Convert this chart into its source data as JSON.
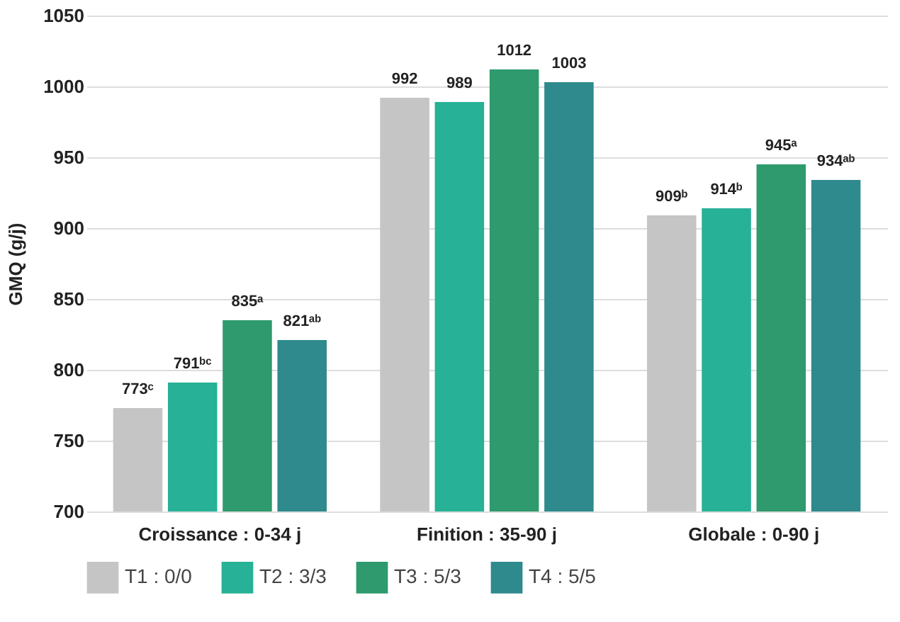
{
  "chart_data": {
    "type": "bar",
    "ylabel": "GMQ (g/j)",
    "categories": [
      "Croissance : 0-34 j",
      "Finition : 35-90 j",
      "Globale : 0-90 j"
    ],
    "series": [
      {
        "name": "T1 : 0/0",
        "color": "#c4c5c4",
        "values": [
          773,
          992,
          909
        ],
        "value_labels": [
          "773ᶜ",
          "992",
          "909ᵇ"
        ]
      },
      {
        "name": "T2 : 3/3",
        "color": "#27b196",
        "values": [
          791,
          989,
          914
        ],
        "value_labels": [
          "791ᵇᶜ",
          "989",
          "914ᵇ"
        ]
      },
      {
        "name": "T3 : 5/3",
        "color": "#2e9a6e",
        "values": [
          835,
          1012,
          945
        ],
        "value_labels": [
          "835ᵃ",
          "1012",
          "945ᵃ"
        ]
      },
      {
        "name": "T4 : 5/5",
        "color": "#2e8a8d",
        "values": [
          821,
          1003,
          934
        ],
        "value_labels": [
          "821ᵃᵇ",
          "1003",
          "934ᵃᵇ"
        ]
      }
    ],
    "ylim": [
      700,
      1050
    ],
    "yticks": [
      700,
      750,
      800,
      850,
      900,
      950,
      1000,
      1050
    ],
    "grid": "y",
    "legend": "bottom"
  }
}
